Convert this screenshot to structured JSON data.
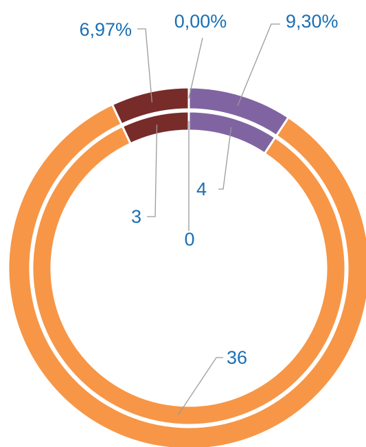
{
  "chart_data": {
    "type": "nested-donut",
    "colors": [
      "#8064a2",
      "#f79646",
      "#772c2a",
      "#4f81bd"
    ],
    "series": [
      {
        "ring": "inner",
        "values": [
          4,
          36,
          3,
          0
        ]
      },
      {
        "ring": "outer",
        "values": [
          9.3,
          83.72,
          6.97,
          0
        ],
        "value_labels": [
          "9,30%",
          null,
          "6,97%",
          "0,00%"
        ]
      }
    ]
  }
}
